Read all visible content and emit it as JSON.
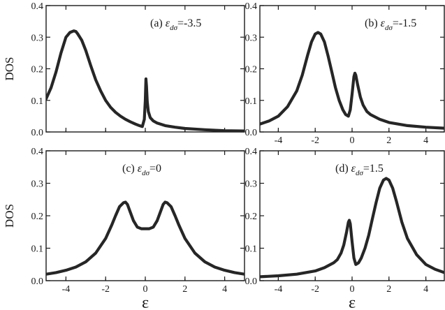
{
  "chart_data": [
    {
      "type": "line",
      "panel": "a",
      "label_prefix": "(a) ",
      "label_symbol": "ε",
      "label_subscript": "dσ",
      "label_value": "=-3.5",
      "ylabel": "DOS",
      "xlabel": "",
      "xlim": [
        -5,
        5
      ],
      "ylim": [
        0,
        0.4
      ],
      "xticks": [
        -4,
        -2,
        0,
        2,
        4
      ],
      "yticks": [
        "0.0",
        "0.1",
        "0.2",
        "0.3",
        "0.4"
      ],
      "show_xtick_labels": false,
      "show_ytick_labels": true,
      "series": [
        {
          "x": [
            -5.0,
            -4.75,
            -4.5,
            -4.25,
            -4.0,
            -3.8,
            -3.6,
            -3.5,
            -3.4,
            -3.2,
            -3.0,
            -2.75,
            -2.5,
            -2.25,
            -2.0,
            -1.75,
            -1.5,
            -1.25,
            -1.0,
            -0.75,
            -0.5,
            -0.3,
            -0.15,
            -0.05,
            0.0,
            0.03,
            0.06,
            0.1,
            0.15,
            0.25,
            0.4,
            0.6,
            1.0,
            1.5,
            2.0,
            3.0,
            4.0,
            5.0
          ],
          "y": [
            0.105,
            0.14,
            0.19,
            0.25,
            0.3,
            0.315,
            0.32,
            0.318,
            0.31,
            0.29,
            0.258,
            0.21,
            0.165,
            0.13,
            0.1,
            0.078,
            0.062,
            0.05,
            0.04,
            0.032,
            0.025,
            0.02,
            0.017,
            0.04,
            0.1,
            0.168,
            0.145,
            0.095,
            0.065,
            0.045,
            0.035,
            0.028,
            0.02,
            0.015,
            0.011,
            0.007,
            0.004,
            0.003
          ]
        }
      ]
    },
    {
      "type": "line",
      "panel": "b",
      "label_prefix": "(b) ",
      "label_symbol": "ε",
      "label_subscript": "dσ",
      "label_value": "=-1.5",
      "ylabel": "",
      "xlabel": "",
      "xlim": [
        -5,
        5
      ],
      "ylim": [
        0,
        0.4
      ],
      "xticks": [
        -4,
        -2,
        0,
        2,
        4
      ],
      "yticks": [
        "0.0",
        "0.1",
        "0.2",
        "0.3",
        "0.4"
      ],
      "show_xtick_labels": true,
      "show_ytick_labels": true,
      "series": [
        {
          "x": [
            -5.0,
            -4.5,
            -4.0,
            -3.5,
            -3.0,
            -2.7,
            -2.4,
            -2.2,
            -2.0,
            -1.85,
            -1.7,
            -1.5,
            -1.3,
            -1.1,
            -0.9,
            -0.7,
            -0.5,
            -0.35,
            -0.2,
            -0.1,
            0.0,
            0.1,
            0.15,
            0.2,
            0.3,
            0.45,
            0.6,
            0.8,
            1.0,
            1.5,
            2.0,
            3.0,
            4.0,
            5.0
          ],
          "y": [
            0.025,
            0.035,
            0.05,
            0.08,
            0.13,
            0.18,
            0.245,
            0.285,
            0.31,
            0.315,
            0.31,
            0.285,
            0.24,
            0.19,
            0.14,
            0.1,
            0.07,
            0.055,
            0.05,
            0.07,
            0.12,
            0.175,
            0.186,
            0.18,
            0.15,
            0.11,
            0.085,
            0.065,
            0.055,
            0.04,
            0.03,
            0.02,
            0.015,
            0.012
          ]
        }
      ]
    },
    {
      "type": "line",
      "panel": "c",
      "label_prefix": "(c) ",
      "label_symbol": "ε",
      "label_subscript": "dσ",
      "label_value": "=0",
      "ylabel": "DOS",
      "xlabel": "ε",
      "xlim": [
        -5,
        5
      ],
      "ylim": [
        0,
        0.4
      ],
      "xticks": [
        -4,
        -2,
        0,
        2,
        4
      ],
      "yticks": [
        "0.0",
        "0.1",
        "0.2",
        "0.3",
        "0.4"
      ],
      "show_xtick_labels": true,
      "show_ytick_labels": true,
      "series": [
        {
          "x": [
            -5.0,
            -4.5,
            -4.0,
            -3.5,
            -3.0,
            -2.5,
            -2.0,
            -1.7,
            -1.5,
            -1.3,
            -1.1,
            -1.0,
            -0.9,
            -0.75,
            -0.6,
            -0.4,
            -0.2,
            0.0,
            0.2,
            0.4,
            0.6,
            0.75,
            0.9,
            1.0,
            1.1,
            1.3,
            1.5,
            1.7,
            2.0,
            2.5,
            3.0,
            3.5,
            4.0,
            4.5,
            5.0
          ],
          "y": [
            0.02,
            0.025,
            0.032,
            0.042,
            0.058,
            0.085,
            0.13,
            0.17,
            0.2,
            0.228,
            0.24,
            0.242,
            0.235,
            0.21,
            0.185,
            0.165,
            0.16,
            0.16,
            0.16,
            0.165,
            0.185,
            0.21,
            0.235,
            0.242,
            0.24,
            0.228,
            0.2,
            0.17,
            0.13,
            0.085,
            0.058,
            0.042,
            0.032,
            0.025,
            0.02
          ]
        }
      ]
    },
    {
      "type": "line",
      "panel": "d",
      "label_prefix": "(d) ",
      "label_symbol": "ε",
      "label_subscript": "dσ",
      "label_value": "=1.5",
      "ylabel": "",
      "xlabel": "ε",
      "xlim": [
        -5,
        5
      ],
      "ylim": [
        0,
        0.4
      ],
      "xticks": [
        -4,
        -2,
        0,
        2,
        4
      ],
      "yticks": [
        "0.0",
        "0.1",
        "0.2",
        "0.3",
        "0.4"
      ],
      "show_xtick_labels": true,
      "show_ytick_labels": true,
      "series": [
        {
          "x": [
            -5.0,
            -4.0,
            -3.0,
            -2.0,
            -1.5,
            -1.0,
            -0.8,
            -0.6,
            -0.45,
            -0.3,
            -0.2,
            -0.15,
            -0.1,
            0.0,
            0.1,
            0.2,
            0.35,
            0.5,
            0.7,
            0.9,
            1.1,
            1.3,
            1.5,
            1.7,
            1.85,
            2.0,
            2.2,
            2.4,
            2.7,
            3.0,
            3.5,
            4.0,
            4.5,
            5.0
          ],
          "y": [
            0.012,
            0.015,
            0.02,
            0.03,
            0.04,
            0.055,
            0.065,
            0.085,
            0.11,
            0.15,
            0.18,
            0.186,
            0.175,
            0.12,
            0.07,
            0.05,
            0.055,
            0.07,
            0.1,
            0.14,
            0.19,
            0.24,
            0.285,
            0.31,
            0.315,
            0.31,
            0.285,
            0.245,
            0.18,
            0.13,
            0.08,
            0.05,
            0.035,
            0.025
          ]
        }
      ]
    }
  ]
}
